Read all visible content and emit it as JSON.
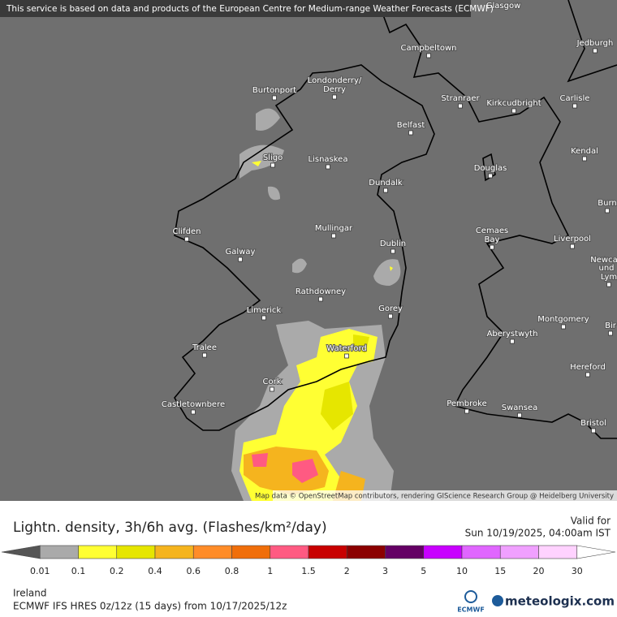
{
  "header": {
    "notice": "This service is based on data and products of the European Centre for Medium-range Weather Forecasts (ECMWF)"
  },
  "map": {
    "places": [
      "Glasgow",
      "Jedburgh",
      "Campbeltown",
      "Londonderry/",
      "Derry",
      "Burtonport",
      "Stranraer",
      "Kirkcudbright",
      "Carlisle",
      "Belfast",
      "Sligo",
      "Lisnaskea",
      "Kendal",
      "Douglas",
      "Dundalk",
      "Burn",
      "Mullingar",
      "Clifden",
      "Cemaes",
      "Bay",
      "Liverpool",
      "Dublin",
      "Galway",
      "Newca",
      "und",
      "Lym",
      "Rathdowney",
      "Limerick",
      "Gorey",
      "Montgomery",
      "Bir",
      "Aberystwyth",
      "Tralee",
      "Waterford",
      "Hereford",
      "Cork",
      "Pembroke",
      "Swansea",
      "Castletownbere",
      "Bristol"
    ],
    "attribution": "Map data © OpenStreetMap contributors, rendering GIScience Research Group @ Heidelberg University"
  },
  "legend": {
    "title": "Lightn. density, 3h/6h avg. (Flashes/km²/day)",
    "valid_label": "Valid for",
    "valid_time": "Sun 10/19/2025, 04:00am IST",
    "ticks": [
      "0.01",
      "0.1",
      "0.2",
      "0.4",
      "0.6",
      "0.8",
      "1",
      "1.5",
      "2",
      "3",
      "5",
      "10",
      "15",
      "20",
      "30"
    ],
    "colors": [
      "#555555",
      "#aaaaaa",
      "#ffff33",
      "#e6e600",
      "#f5b41e",
      "#ff8c28",
      "#f06e0a",
      "#ff5a82",
      "#c80000",
      "#8b0000",
      "#640064",
      "#c800ff",
      "#e066ff",
      "#f0a0ff",
      "#ffd2ff",
      "#ffffff"
    ]
  },
  "footer": {
    "region": "Ireland",
    "model": "ECMWF IFS HRES 0z/12z (15 days) from  10/17/2025/12z",
    "ecmwf_logo": "ECMWF",
    "brand": "meteologix.com"
  }
}
